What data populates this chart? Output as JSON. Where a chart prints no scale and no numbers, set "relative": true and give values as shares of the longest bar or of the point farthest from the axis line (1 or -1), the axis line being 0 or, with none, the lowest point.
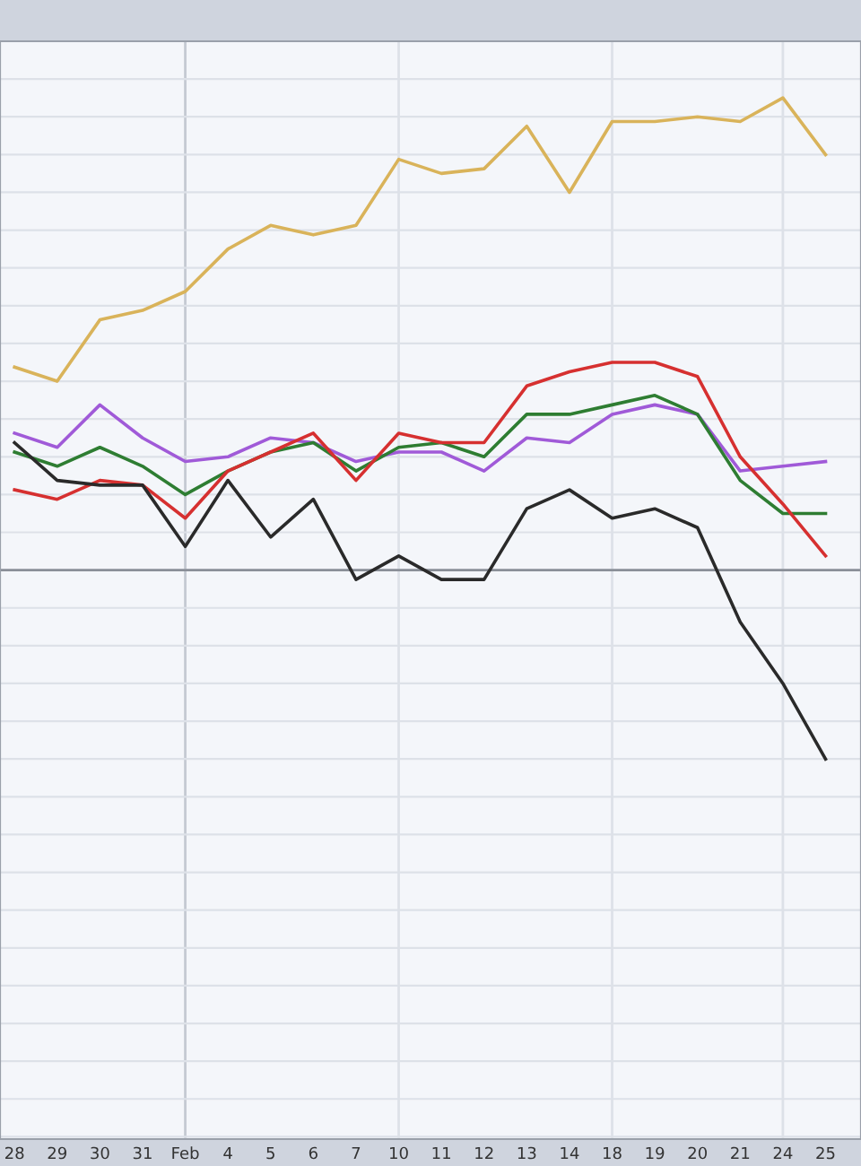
{
  "chart_data": {
    "type": "line",
    "relative": true,
    "grid": "y",
    "legend": false,
    "marker": "none",
    "line_style": "solid",
    "categories": [
      "28",
      "29",
      "30",
      "31",
      "Feb",
      "4",
      "5",
      "6",
      "7",
      "10",
      "11",
      "12",
      "13",
      "14",
      "18",
      "19",
      "20",
      "21",
      "24",
      "25"
    ],
    "series": [
      {
        "color": "#d9b35a",
        "values": [
          0.43,
          0.4,
          0.53,
          0.55,
          0.59,
          0.68,
          0.73,
          0.71,
          0.73,
          0.87,
          0.84,
          0.85,
          0.94,
          0.8,
          0.95,
          0.95,
          0.96,
          0.95,
          1.0,
          0.88
        ]
      },
      {
        "color": "#a05ad8",
        "values": [
          0.29,
          0.26,
          0.35,
          0.28,
          0.23,
          0.24,
          0.28,
          0.27,
          0.23,
          0.25,
          0.25,
          0.21,
          0.28,
          0.27,
          0.33,
          0.35,
          0.33,
          0.21,
          0.22,
          0.23
        ]
      },
      {
        "color": "#2e7d32",
        "values": [
          0.25,
          0.22,
          0.26,
          0.22,
          0.16,
          0.21,
          0.25,
          0.27,
          0.21,
          0.26,
          0.27,
          0.24,
          0.33,
          0.33,
          0.35,
          0.37,
          0.33,
          0.19,
          0.12,
          0.12
        ]
      },
      {
        "color": "#d63030",
        "values": [
          0.17,
          0.15,
          0.19,
          0.18,
          0.11,
          0.21,
          0.25,
          0.29,
          0.19,
          0.29,
          0.27,
          0.27,
          0.39,
          0.42,
          0.44,
          0.44,
          0.41,
          0.24,
          0.14,
          0.03
        ]
      },
      {
        "color": "#2a2a2a",
        "values": [
          0.27,
          0.19,
          0.18,
          0.18,
          0.05,
          0.19,
          0.07,
          0.15,
          -0.02,
          0.03,
          -0.02,
          -0.02,
          0.13,
          0.17,
          0.11,
          0.13,
          0.09,
          -0.11,
          -0.24,
          -0.4
        ]
      }
    ],
    "ref_lines": [
      {
        "axis": "x",
        "value": "Feb",
        "color": "#c4c9d2"
      },
      {
        "axis": "x",
        "value": "10",
        "color": "#dde1e8"
      },
      {
        "axis": "x",
        "value": "18",
        "color": "#dde1e8"
      },
      {
        "axis": "x",
        "value": "24",
        "color": "#dde1e8"
      }
    ]
  }
}
